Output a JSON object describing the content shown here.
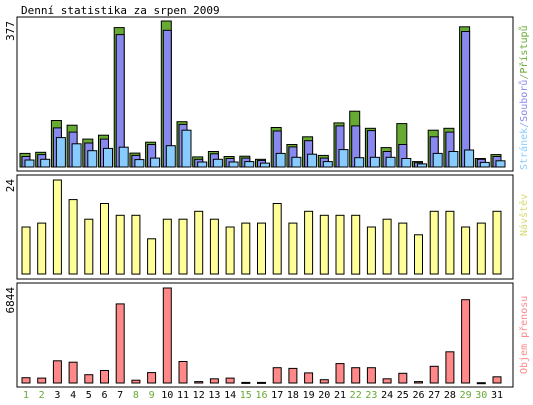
{
  "title": "Denní statistika za srpen 2009",
  "colors": {
    "background": "#ffffff",
    "frame": "#000000",
    "access": "#66aa33",
    "files": "#8888ee",
    "pages": "#88ccff",
    "visits": "#ffff99",
    "traffic": "#ff8888",
    "weekday": "#000000",
    "weekend": "#66aa33"
  },
  "panels": {
    "top": {
      "ymax_label": "377",
      "legend": {
        "pages": "Stránek",
        "sep1": "/",
        "files": "Souborů",
        "sep2": "/",
        "access": "Přístupů"
      }
    },
    "middle": {
      "ymax_label": "24",
      "legend": "Návštěv"
    },
    "bottom": {
      "ymax_label": "6844",
      "legend": "Objem přenosu"
    }
  },
  "chart_data": [
    {
      "type": "bar",
      "title": "Denní statistika za srpen 2009",
      "categories": [
        "1",
        "2",
        "3",
        "4",
        "5",
        "6",
        "7",
        "8",
        "9",
        "10",
        "11",
        "12",
        "13",
        "14",
        "15",
        "16",
        "17",
        "18",
        "19",
        "20",
        "21",
        "22",
        "23",
        "24",
        "25",
        "26",
        "27",
        "28",
        "29",
        "30",
        "31"
      ],
      "weekend_days": [
        "1",
        "2",
        "8",
        "9",
        "15",
        "16",
        "22",
        "23",
        "29",
        "30"
      ],
      "ylim": [
        0,
        377
      ],
      "series": [
        {
          "name": "Přístupů",
          "values": [
            35,
            38,
            120,
            108,
            72,
            82,
            360,
            36,
            64,
            377,
            117,
            26,
            40,
            27,
            28,
            20,
            102,
            58,
            78,
            30,
            114,
            144,
            100,
            50,
            112,
            14,
            95,
            100,
            362,
            22,
            32
          ]
        },
        {
          "name": "Souborů",
          "values": [
            27,
            32,
            101,
            90,
            62,
            72,
            342,
            30,
            58,
            353,
            110,
            20,
            34,
            22,
            23,
            17,
            93,
            52,
            68,
            23,
            106,
            106,
            94,
            40,
            58,
            11,
            78,
            90,
            350,
            20,
            27
          ]
        },
        {
          "name": "Stránek",
          "values": [
            18,
            20,
            76,
            60,
            42,
            48,
            51,
            19,
            23,
            55,
            95,
            13,
            20,
            13,
            14,
            10,
            35,
            25,
            33,
            14,
            45,
            24,
            25,
            25,
            22,
            8,
            35,
            40,
            44,
            12,
            16
          ]
        }
      ]
    },
    {
      "type": "bar",
      "categories": [
        "1",
        "2",
        "3",
        "4",
        "5",
        "6",
        "7",
        "8",
        "9",
        "10",
        "11",
        "12",
        "13",
        "14",
        "15",
        "16",
        "17",
        "18",
        "19",
        "20",
        "21",
        "22",
        "23",
        "24",
        "25",
        "26",
        "27",
        "28",
        "29",
        "30",
        "31"
      ],
      "ylim": [
        0,
        24
      ],
      "series": [
        {
          "name": "Návštěv",
          "values": [
            12,
            13,
            24,
            19,
            14,
            18,
            15,
            15,
            9,
            14,
            14,
            16,
            14,
            12,
            13,
            13,
            18,
            13,
            16,
            15,
            15,
            15,
            12,
            14,
            13,
            10,
            16,
            16,
            12,
            13,
            16
          ]
        }
      ]
    },
    {
      "type": "bar",
      "categories": [
        "1",
        "2",
        "3",
        "4",
        "5",
        "6",
        "7",
        "8",
        "9",
        "10",
        "11",
        "12",
        "13",
        "14",
        "15",
        "16",
        "17",
        "18",
        "19",
        "20",
        "21",
        "22",
        "23",
        "24",
        "25",
        "26",
        "27",
        "28",
        "29",
        "30",
        "31"
      ],
      "ylim": [
        0,
        6844
      ],
      "series": [
        {
          "name": "Objem přenosu",
          "values": [
            380,
            350,
            1600,
            1500,
            600,
            900,
            5700,
            200,
            750,
            6844,
            1550,
            100,
            300,
            350,
            40,
            40,
            1100,
            1050,
            730,
            240,
            1400,
            1100,
            1100,
            300,
            700,
            100,
            1200,
            2250,
            6000,
            20,
            450
          ]
        }
      ]
    }
  ]
}
